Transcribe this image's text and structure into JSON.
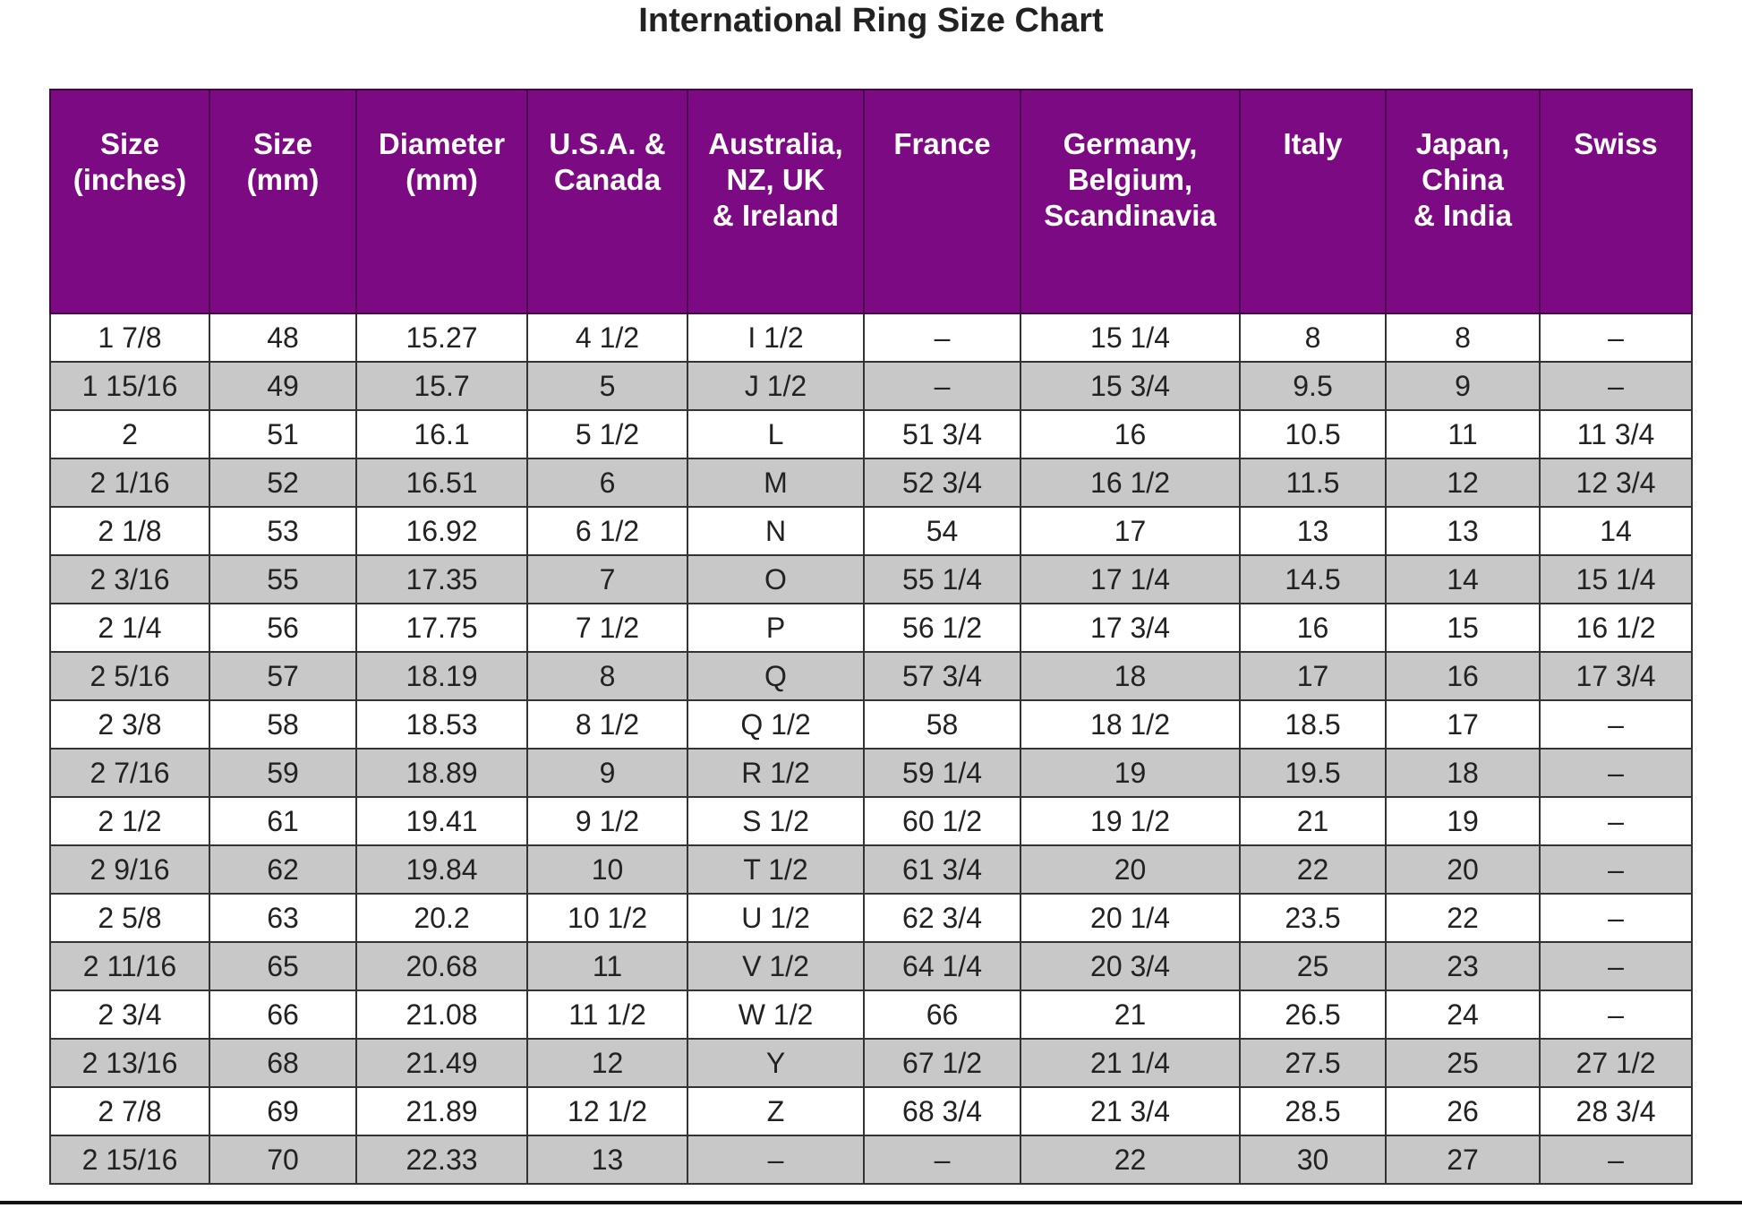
{
  "title": "International Ring Size Chart",
  "table": {
    "header": [
      "Size\n(inches)",
      "Size\n(mm)",
      "Diameter\n(mm)",
      "U.S.A. &\nCanada",
      "Australia,\nNZ, UK\n& Ireland",
      "France",
      "Germany,\nBelgium,\nScandinavia",
      "Italy",
      "Japan,\nChina\n& India",
      "Swiss"
    ],
    "rows": [
      [
        "1 7/8",
        "48",
        "15.27",
        "4 1/2",
        "I 1/2",
        "–",
        "15 1/4",
        "8",
        "8",
        "–"
      ],
      [
        "1 15/16",
        "49",
        "15.7",
        "5",
        "J 1/2",
        "–",
        "15 3/4",
        "9.5",
        "9",
        "–"
      ],
      [
        "2",
        "51",
        "16.1",
        "5 1/2",
        "L",
        "51 3/4",
        "16",
        "10.5",
        "11",
        "11 3/4"
      ],
      [
        "2 1/16",
        "52",
        "16.51",
        "6",
        "M",
        "52 3/4",
        "16 1/2",
        "11.5",
        "12",
        "12 3/4"
      ],
      [
        "2 1/8",
        "53",
        "16.92",
        "6 1/2",
        "N",
        "54",
        "17",
        "13",
        "13",
        "14"
      ],
      [
        "2 3/16",
        "55",
        "17.35",
        "7",
        "O",
        "55 1/4",
        "17 1/4",
        "14.5",
        "14",
        "15 1/4"
      ],
      [
        "2 1/4",
        "56",
        "17.75",
        "7 1/2",
        "P",
        "56 1/2",
        "17 3/4",
        "16",
        "15",
        "16 1/2"
      ],
      [
        "2 5/16",
        "57",
        "18.19",
        "8",
        "Q",
        "57 3/4",
        "18",
        "17",
        "16",
        "17 3/4"
      ],
      [
        "2 3/8",
        "58",
        "18.53",
        "8 1/2",
        "Q 1/2",
        "58",
        "18 1/2",
        "18.5",
        "17",
        "–"
      ],
      [
        "2 7/16",
        "59",
        "18.89",
        "9",
        "R 1/2",
        "59 1/4",
        "19",
        "19.5",
        "18",
        "–"
      ],
      [
        "2 1/2",
        "61",
        "19.41",
        "9 1/2",
        "S 1/2",
        "60 1/2",
        "19 1/2",
        "21",
        "19",
        "–"
      ],
      [
        "2 9/16",
        "62",
        "19.84",
        "10",
        "T 1/2",
        "61 3/4",
        "20",
        "22",
        "20",
        "–"
      ],
      [
        "2 5/8",
        "63",
        "20.2",
        "10 1/2",
        "U 1/2",
        "62 3/4",
        "20 1/4",
        "23.5",
        "22",
        "–"
      ],
      [
        "2 11/16",
        "65",
        "20.68",
        "11",
        "V 1/2",
        "64 1/4",
        "20 3/4",
        "25",
        "23",
        "–"
      ],
      [
        "2 3/4",
        "66",
        "21.08",
        "11 1/2",
        "W 1/2",
        "66",
        "21",
        "26.5",
        "24",
        "–"
      ],
      [
        "2 13/16",
        "68",
        "21.49",
        "12",
        "Y",
        "67 1/2",
        "21 1/4",
        "27.5",
        "25",
        "27 1/2"
      ],
      [
        "2 7/8",
        "69",
        "21.89",
        "12 1/2",
        "Z",
        "68 3/4",
        "21 3/4",
        "28.5",
        "26",
        "28 3/4"
      ],
      [
        "2 15/16",
        "70",
        "22.33",
        "13",
        "–",
        "–",
        "22",
        "30",
        "27",
        "–"
      ]
    ]
  }
}
